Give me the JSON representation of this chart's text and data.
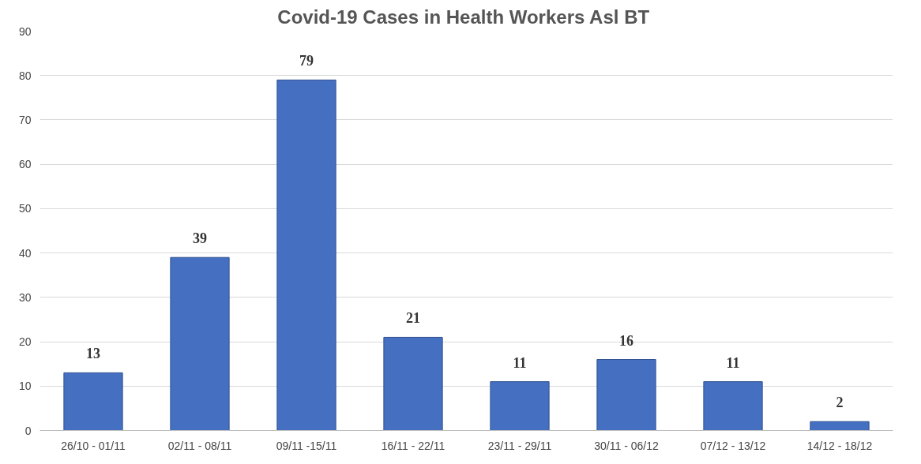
{
  "chart_data": {
    "type": "bar",
    "title": "Covid-19 Cases  in Health Workers Asl BT",
    "categories": [
      "26/10 - 01/11",
      "02/11 - 08/11",
      "09/11 -15/11",
      "16/11 - 22/11",
      "23/11 - 29/11",
      "30/11 - 06/12",
      "07/12 - 13/12",
      "14/12 - 18/12"
    ],
    "values": [
      13,
      39,
      79,
      21,
      11,
      16,
      11,
      2
    ],
    "color": "#4570c2",
    "ylim": [
      0,
      90
    ],
    "yticks": [
      0,
      10,
      20,
      30,
      40,
      50,
      60,
      70,
      80,
      90
    ],
    "grid": "y",
    "data_labels": true
  }
}
